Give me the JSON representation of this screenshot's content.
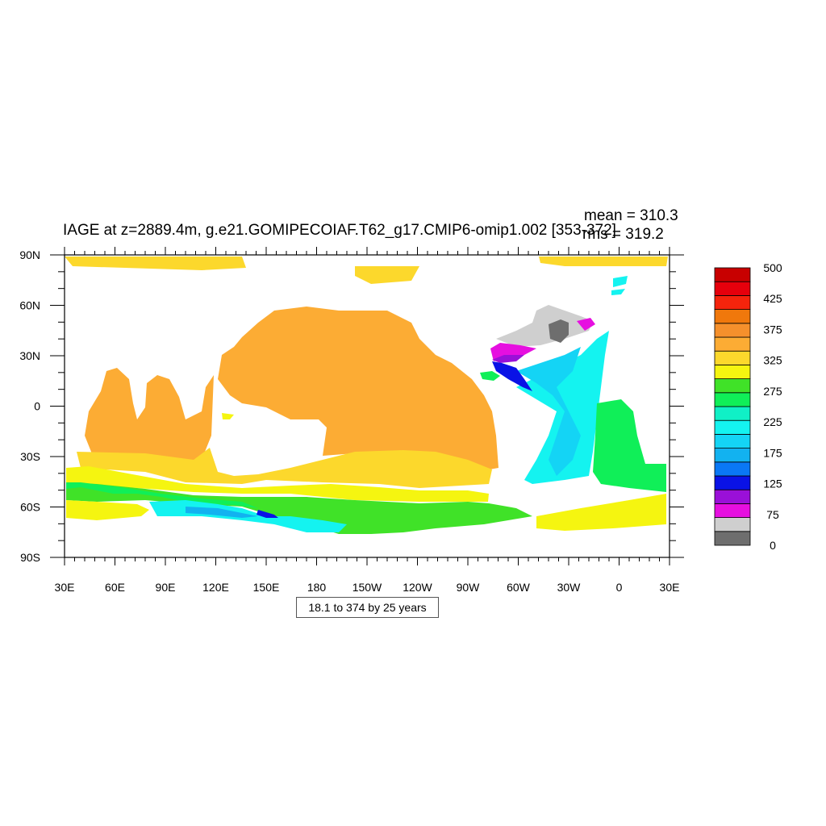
{
  "chart_data": {
    "type": "heatmap",
    "title": "IAGE at z=2889.4m, g.e21.GOMIPECOIAF.T62_g17.CMIP6-omip1.002 [353-372]",
    "stats": {
      "mean": "mean = 310.3",
      "rms": "rms = 319.2"
    },
    "footnote": "18.1 to 374 by 25 years",
    "x_ticks": [
      "30E",
      "60E",
      "90E",
      "120E",
      "150E",
      "180",
      "150W",
      "120W",
      "90W",
      "60W",
      "30W",
      "0",
      "30E"
    ],
    "y_ticks": [
      "90N",
      "60N",
      "30N",
      "0",
      "30S",
      "60S",
      "90S"
    ],
    "colorbar": {
      "colors": [
        "#6e6e6e",
        "#cfcfcf",
        "#e60fe0",
        "#9a10d8",
        "#0a12e6",
        "#0a78f5",
        "#12b2f0",
        "#14d4f5",
        "#14f3f0",
        "#10f0c6",
        "#10ef58",
        "#40e228",
        "#f5f510",
        "#fcd82c",
        "#fcac34",
        "#f5902c",
        "#f0780c",
        "#f5240c",
        "#e6000c",
        "#c80000"
      ],
      "labels": [
        "0",
        "75",
        "125",
        "175",
        "225",
        "275",
        "325",
        "375",
        "425",
        "500"
      ]
    },
    "regions": [
      {
        "name": "arctic-band",
        "color": "#fcd82c"
      },
      {
        "name": "indo-pacific",
        "color": "#fcac34"
      },
      {
        "name": "southern-yellow",
        "color": "#f5f510"
      },
      {
        "name": "southern-green",
        "color": "#40e228"
      },
      {
        "name": "southern-bright-green",
        "color": "#10ef58"
      },
      {
        "name": "atlantic-cyan",
        "color": "#14f3f0"
      },
      {
        "name": "atlantic-light-blue",
        "color": "#14d4f5"
      },
      {
        "name": "north-atlantic-gray",
        "color": "#cfcfcf"
      },
      {
        "name": "north-atlantic-dark",
        "color": "#6e6e6e"
      },
      {
        "name": "north-atlantic-magenta",
        "color": "#e60fe0"
      },
      {
        "name": "north-atlantic-blue",
        "color": "#0a12e6"
      },
      {
        "name": "ross-sea-cyan",
        "color": "#14f3f0"
      }
    ]
  }
}
